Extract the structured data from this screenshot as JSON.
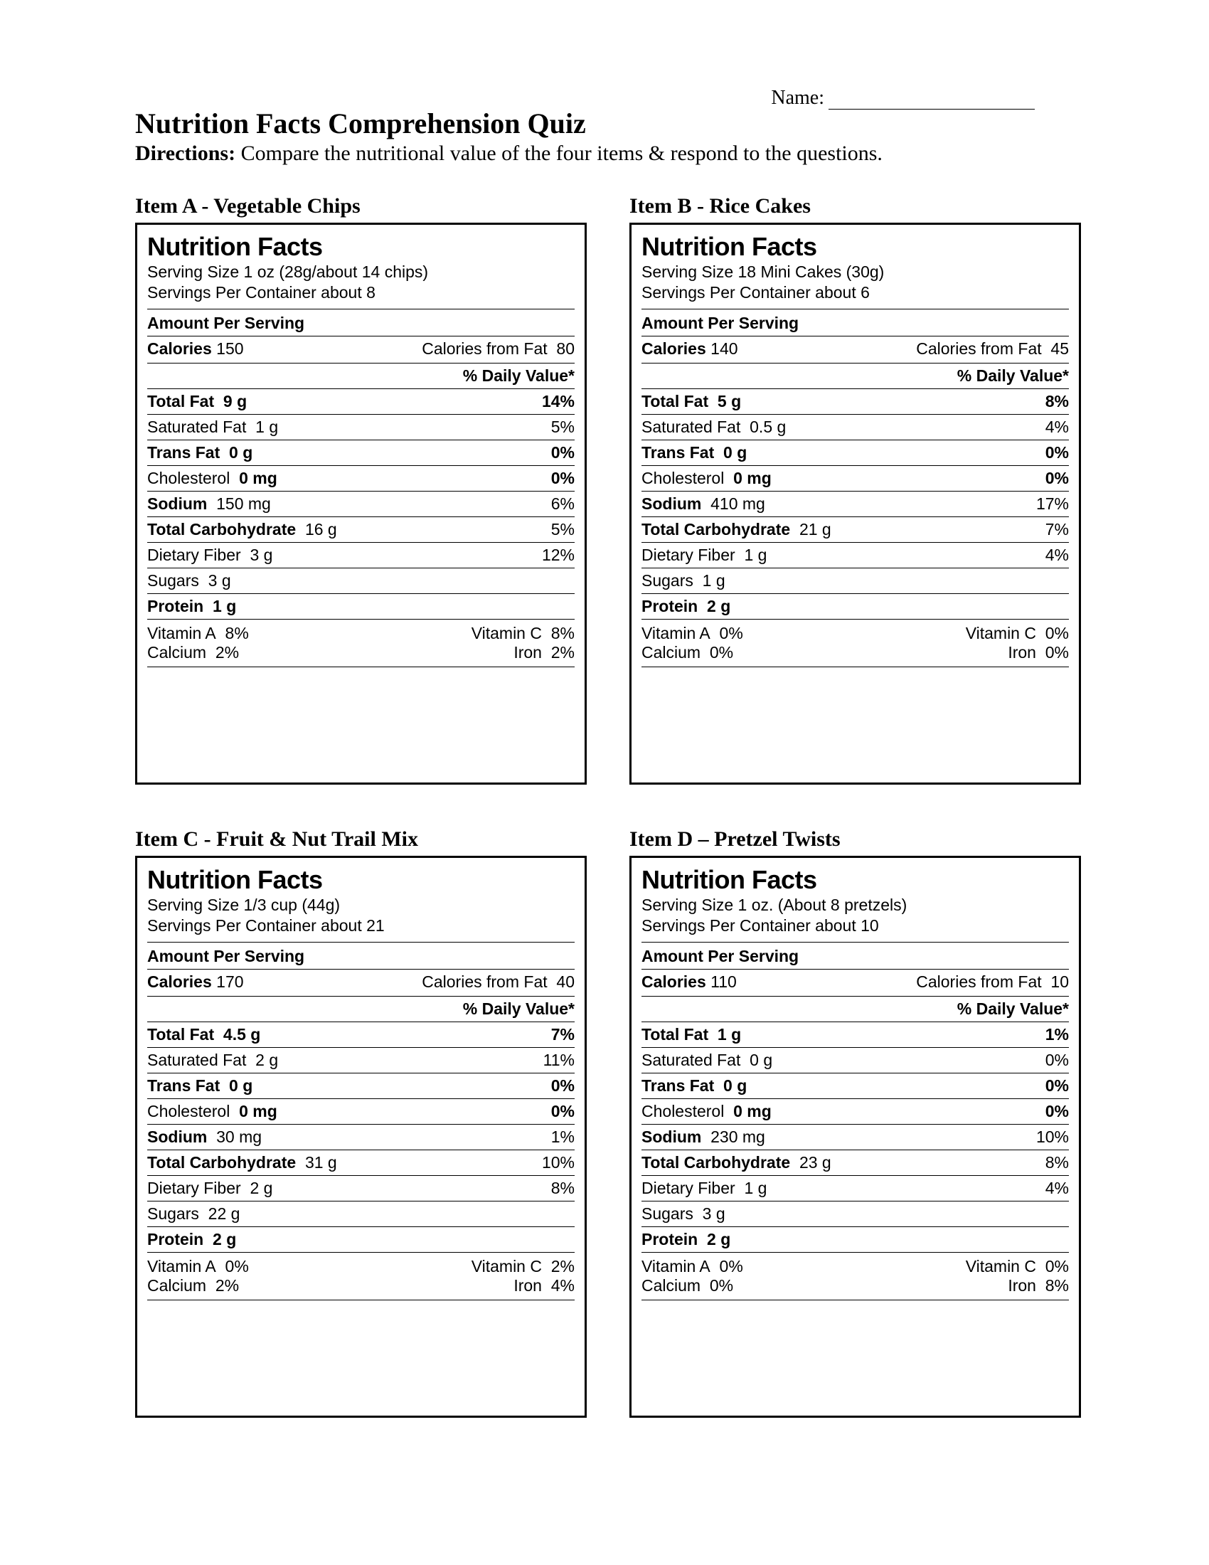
{
  "header": {
    "name_label": "Name:",
    "title": "Nutrition Facts Comprehension Quiz",
    "directions_label": "Directions:",
    "directions_text": " Compare the nutritional value of the four items & respond to the questions."
  },
  "labels": {
    "nutrition_facts": "Nutrition Facts",
    "amount_per_serving": "Amount Per Serving",
    "daily_value": "% Daily Value*",
    "calories": "Calories",
    "calories_from_fat": "Calories from Fat",
    "total_fat": "Total Fat",
    "saturated_fat": "Saturated Fat",
    "trans_fat": "Trans Fat",
    "cholesterol": "Cholesterol",
    "sodium": "Sodium",
    "total_carb": "Total Carbohydrate",
    "dietary_fiber": "Dietary Fiber",
    "sugars": "Sugars",
    "protein": "Protein",
    "vitamin_a": "Vitamin A",
    "vitamin_c": "Vitamin C",
    "calcium": "Calcium",
    "iron": "Iron"
  },
  "items": {
    "A": {
      "title": "Item A - Vegetable Chips",
      "serving_size": "Serving Size 1 oz (28g/about 14 chips)",
      "servings_per": "Servings Per Container about 8",
      "calories": "150",
      "cal_fat": "80",
      "total_fat": "9 g",
      "total_fat_dv": "14%",
      "sat_fat": "1 g",
      "sat_fat_dv": "5%",
      "trans_fat": "0 g",
      "trans_fat_dv": "0%",
      "cholesterol": "0 mg",
      "cholesterol_dv": "0%",
      "sodium": "150 mg",
      "sodium_dv": "6%",
      "carb": "16 g",
      "carb_dv": "5%",
      "fiber": "3 g",
      "fiber_dv": "12%",
      "sugars": "3 g",
      "protein": "1 g",
      "vit_a": "8%",
      "vit_c": "8%",
      "calcium": "2%",
      "iron": "2%"
    },
    "B": {
      "title": "Item B - Rice Cakes",
      "serving_size": "Serving Size 18 Mini Cakes (30g)",
      "servings_per": "Servings Per Container about 6",
      "calories": "140",
      "cal_fat": "45",
      "total_fat": "5 g",
      "total_fat_dv": "8%",
      "sat_fat": "0.5 g",
      "sat_fat_dv": "4%",
      "trans_fat": "0 g",
      "trans_fat_dv": "0%",
      "cholesterol": "0 mg",
      "cholesterol_dv": "0%",
      "sodium": "410 mg",
      "sodium_dv": "17%",
      "carb": "21 g",
      "carb_dv": "7%",
      "fiber": "1 g",
      "fiber_dv": "4%",
      "sugars": "1 g",
      "protein": "2 g",
      "vit_a": "0%",
      "vit_c": "0%",
      "calcium": "0%",
      "iron": "0%"
    },
    "C": {
      "title": "Item C - Fruit & Nut Trail Mix",
      "serving_size": "Serving Size 1/3 cup (44g)",
      "servings_per": "Servings Per Container about 21",
      "calories": "170",
      "cal_fat": "40",
      "total_fat": "4.5 g",
      "total_fat_dv": "7%",
      "sat_fat": "2 g",
      "sat_fat_dv": "11%",
      "trans_fat": "0 g",
      "trans_fat_dv": "0%",
      "cholesterol": "0 mg",
      "cholesterol_dv": "0%",
      "sodium": "30 mg",
      "sodium_dv": "1%",
      "carb": "31 g",
      "carb_dv": "10%",
      "fiber": "2 g",
      "fiber_dv": "8%",
      "sugars": "22 g",
      "protein": "2 g",
      "vit_a": "0%",
      "vit_c": "2%",
      "calcium": "2%",
      "iron": "4%"
    },
    "D": {
      "title": "Item D – Pretzel Twists",
      "serving_size": "Serving Size 1 oz. (About 8 pretzels)",
      "servings_per": "Servings Per Container about 10",
      "calories": "110",
      "cal_fat": "10",
      "total_fat": "1 g",
      "total_fat_dv": "1%",
      "sat_fat": "0 g",
      "sat_fat_dv": "0%",
      "trans_fat": "0 g",
      "trans_fat_dv": "0%",
      "cholesterol": "0 mg",
      "cholesterol_dv": "0%",
      "sodium": "230 mg",
      "sodium_dv": "10%",
      "carb": "23 g",
      "carb_dv": "8%",
      "fiber": "1 g",
      "fiber_dv": "4%",
      "sugars": "3 g",
      "protein": "2 g",
      "vit_a": "0%",
      "vit_c": "0%",
      "calcium": "0%",
      "iron": "8%"
    }
  }
}
